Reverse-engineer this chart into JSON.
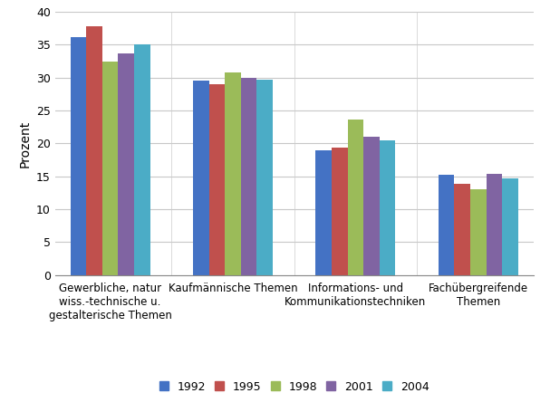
{
  "categories": [
    "Gewerbliche, natur\nwiss.-technische u.\ngestalterische Themen",
    "Kaufmännische Themen",
    "Informations- und\nKommunikationstechniken",
    "Fachübergreifende\nThemen"
  ],
  "years": [
    "1992",
    "1995",
    "1998",
    "2001",
    "2004"
  ],
  "values": {
    "1992": [
      36.2,
      29.5,
      19.0,
      15.3
    ],
    "1995": [
      37.8,
      29.0,
      19.3,
      13.9
    ],
    "1998": [
      32.5,
      30.8,
      23.6,
      13.0
    ],
    "2001": [
      33.7,
      29.9,
      21.0,
      15.4
    ],
    "2004": [
      35.0,
      29.7,
      20.5,
      14.7
    ]
  },
  "colors": {
    "1992": "#4472C4",
    "1995": "#C0504D",
    "1998": "#9BBB59",
    "2001": "#8064A2",
    "2004": "#4BACC6"
  },
  "ylabel": "Prozent",
  "ylim": [
    0,
    40
  ],
  "yticks": [
    0,
    5,
    10,
    15,
    20,
    25,
    30,
    35,
    40
  ],
  "background_color": "#FFFFFF",
  "plot_background": "#FFFFFF",
  "grid_color": "#C8C8C8",
  "bar_width": 0.13,
  "figsize": [
    6.07,
    4.34
  ],
  "dpi": 100
}
